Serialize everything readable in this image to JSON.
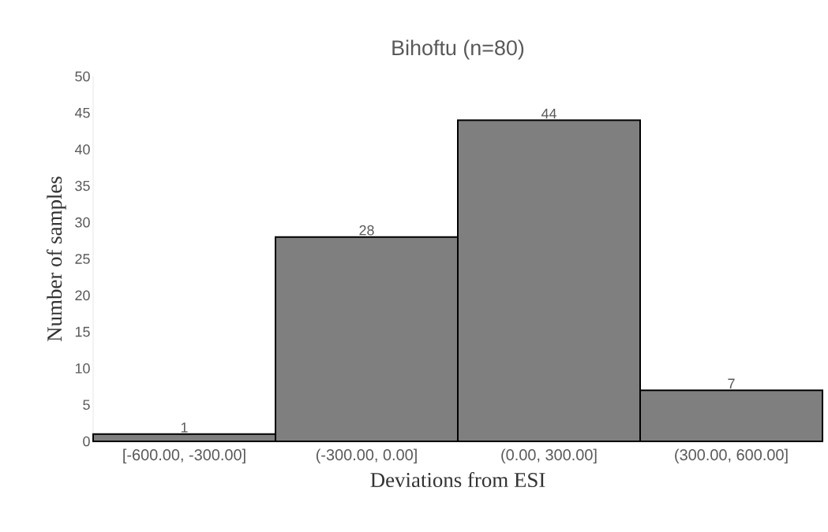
{
  "chart_data": {
    "type": "bar",
    "title": "Bihoftu (n=80)",
    "xlabel": "Deviations from ESI",
    "ylabel": "Number of samples",
    "categories": [
      "[-600.00, -300.00]",
      "(-300.00, 0.00]",
      "(0.00, 300.00]",
      "(300.00, 600.00]"
    ],
    "values": [
      1,
      28,
      44,
      7
    ],
    "color": "#7f7f7f",
    "data_labels": true,
    "ylim": [
      0,
      50
    ],
    "yticks": [
      0,
      5,
      10,
      15,
      20,
      25,
      30,
      35,
      40,
      45,
      50
    ],
    "grid": false,
    "legend": false
  }
}
